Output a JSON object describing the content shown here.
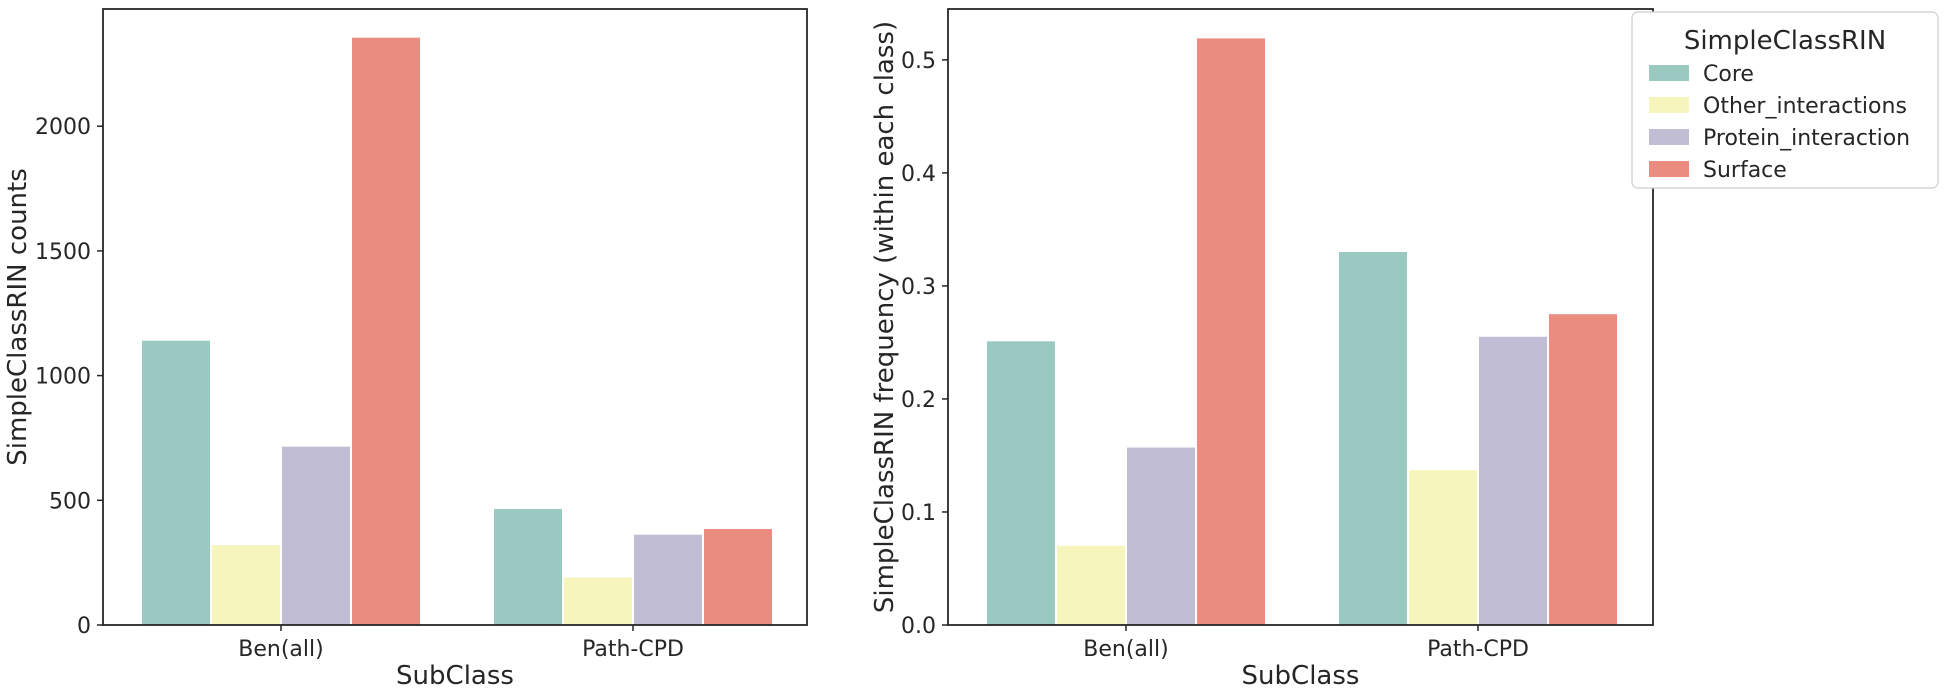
{
  "chart_data": [
    {
      "type": "bar",
      "categories": [
        "Ben(all)",
        "Path-CPD"
      ],
      "series": [
        {
          "name": "Core",
          "values": [
            1140,
            465
          ]
        },
        {
          "name": "Other_interactions",
          "values": [
            320,
            190
          ]
        },
        {
          "name": "Protein_interaction",
          "values": [
            715,
            362
          ]
        },
        {
          "name": "Surface",
          "values": [
            2355,
            385
          ]
        }
      ],
      "xlabel": "SubClass",
      "ylabel": "SimpleClassRIN counts",
      "ylim": [
        0,
        2470
      ],
      "yticks": [
        0,
        500,
        1000,
        1500,
        2000
      ],
      "ytick_labels": [
        "0",
        "500",
        "1000",
        "1500",
        "2000"
      ],
      "grid": false
    },
    {
      "type": "bar",
      "categories": [
        "Ben(all)",
        "Path-CPD"
      ],
      "series": [
        {
          "name": "Core",
          "values": [
            0.251,
            0.33
          ]
        },
        {
          "name": "Other_interactions",
          "values": [
            0.07,
            0.137
          ]
        },
        {
          "name": "Protein_interaction",
          "values": [
            0.157,
            0.255
          ]
        },
        {
          "name": "Surface",
          "values": [
            0.519,
            0.275
          ]
        }
      ],
      "xlabel": "SubClass",
      "ylabel": "SimpleClassRIN frequency (within each class)",
      "ylim": [
        0,
        0.545
      ],
      "yticks": [
        0.0,
        0.1,
        0.2,
        0.3,
        0.4,
        0.5
      ],
      "ytick_labels": [
        "0.0",
        "0.1",
        "0.2",
        "0.3",
        "0.4",
        "0.5"
      ],
      "grid": false
    }
  ],
  "legend": {
    "title": "SimpleClassRIN",
    "placement": "outside upper right",
    "items": [
      "Core",
      "Other_interactions",
      "Protein_interaction",
      "Surface"
    ]
  },
  "colors": [
    "#99c9c1",
    "#f6f5bb",
    "#c0bdd4",
    "#ea8c80"
  ]
}
